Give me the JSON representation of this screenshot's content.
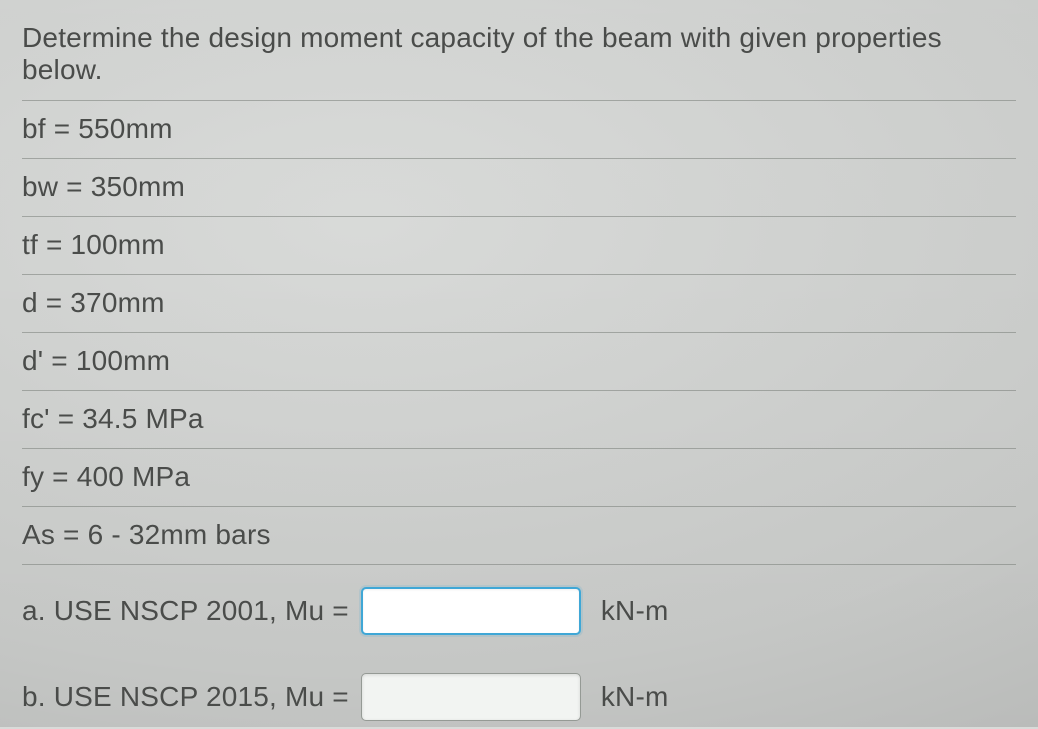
{
  "prompt": "Determine the design moment capacity of the beam with given properties below.",
  "properties": [
    "bf = 550mm",
    "bw = 350mm",
    "tf = 100mm",
    "d = 370mm",
    "d' = 100mm",
    "fc' = 34.5 MPa",
    "fy = 400 MPa",
    "As = 6 - 32mm bars"
  ],
  "answers": {
    "a": {
      "label": "a. USE NSCP 2001, Mu =",
      "value": "",
      "unit": "kN-m",
      "focused": true
    },
    "b": {
      "label": "b. USE NSCP 2015, Mu =",
      "value": "",
      "unit": "kN-m",
      "focused": false
    }
  },
  "style": {
    "background_color": "#d9dbd9",
    "text_color": "#4a4c4a",
    "divider_color": "rgba(120,125,120,0.55)",
    "focus_border": "#3fa7d6",
    "input_bg": "#f2f4f2",
    "font_size_pt": 21
  }
}
